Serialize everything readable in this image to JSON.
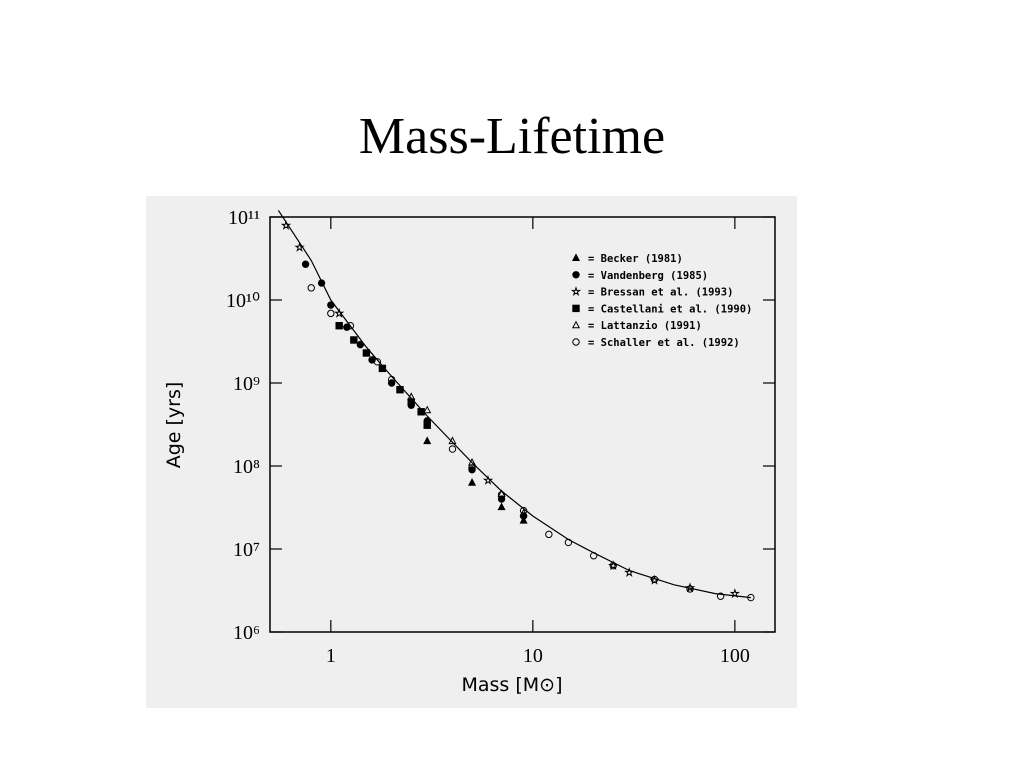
{
  "chart_data": {
    "type": "scatter",
    "title": "Mass-Lifetime",
    "xlabel": "Mass [M⊙]",
    "ylabel": "Age [yrs]",
    "xscale": "log",
    "yscale": "log",
    "legend": "upper right",
    "xlim": [
      0.5,
      158
    ],
    "ylim": [
      1000000.0,
      100000000000.0
    ],
    "xticks": [
      1,
      10,
      100
    ],
    "yticks": [
      {
        "value": 1000000.0,
        "label": "10⁶"
      },
      {
        "value": 10000000.0,
        "label": "10⁷"
      },
      {
        "value": 100000000.0,
        "label": "10⁸"
      },
      {
        "value": 1000000000.0,
        "label": "10⁹"
      },
      {
        "value": 10000000000.0,
        "label": "10¹⁰"
      },
      {
        "value": 100000000000.0,
        "label": "10¹¹"
      }
    ],
    "series": [
      {
        "name": "= Becker (1981)",
        "color": "#000000",
        "marker": "triangle-filled",
        "x": [
          3,
          5,
          7,
          9
        ],
        "values": [
          200000000.0,
          63000000.0,
          32000000.0,
          22000000.0
        ]
      },
      {
        "name": "= Vandenberg (1985)",
        "color": "#000000",
        "marker": "circle-filled",
        "x": [
          0.75,
          0.9,
          1.0,
          1.2,
          1.4,
          1.6,
          2.0,
          2.5,
          3,
          5,
          7,
          9
        ],
        "values": [
          27000000000.0,
          16000000000.0,
          8700000000.0,
          4700000000.0,
          2900000000.0,
          1900000000.0,
          1000000000.0,
          540000000.0,
          350000000.0,
          90000000.0,
          40000000.0,
          25000000.0
        ]
      },
      {
        "name": "= Bressan et al. (1993)",
        "color": "#000000",
        "marker": "star",
        "x": [
          0.6,
          0.7,
          1.1,
          6,
          25,
          30,
          40,
          60,
          100
        ],
        "values": [
          79000000000.0,
          43000000000.0,
          6900000000.0,
          67000000.0,
          6300000.0,
          5200000.0,
          4200000.0,
          3400000.0,
          2900000.0
        ]
      },
      {
        "name": "= Castellani et al. (1990)",
        "color": "#000000",
        "marker": "square-filled",
        "x": [
          1.1,
          1.3,
          1.5,
          1.8,
          2.2,
          2.5,
          2.8,
          3
        ],
        "values": [
          4900000000.0,
          3300000000.0,
          2300000000.0,
          1500000000.0,
          830000000.0,
          590000000.0,
          450000000.0,
          310000000.0
        ]
      },
      {
        "name": "= Lattanzio (1991)",
        "color": "#000000",
        "marker": "triangle-open",
        "x": [
          2.5,
          3,
          4,
          5,
          7,
          9
        ],
        "values": [
          680000000.0,
          470000000.0,
          200000000.0,
          110000000.0,
          46000000.0,
          27000000.0
        ]
      },
      {
        "name": "= Schaller et al. (1992)",
        "color": "#000000",
        "marker": "circle-open",
        "x": [
          0.8,
          1.0,
          1.25,
          1.7,
          2,
          3,
          4,
          5,
          7,
          9,
          12,
          15,
          20,
          25,
          40,
          60,
          85,
          120
        ],
        "values": [
          14000000000.0,
          6900000000.0,
          4900000000.0,
          1800000000.0,
          1100000000.0,
          330000000.0,
          160000000.0,
          95000000.0,
          45000000.0,
          29000000.0,
          15000000.0,
          12000000.0,
          8300000.0,
          6300000.0,
          4300000.0,
          3300000.0,
          2700000.0,
          2600000.0
        ]
      }
    ],
    "fit": {
      "color": "#000000",
      "x": [
        0.55,
        0.8,
        1,
        1.5,
        2,
        3,
        5,
        7,
        10,
        15,
        20,
        30,
        50,
        80,
        120
      ],
      "values": [
        120000000000.0,
        30000000000.0,
        10000000000.0,
        2700000000.0,
        1200000000.0,
        400000000.0,
        110000000.0,
        50000000.0,
        25000000.0,
        13000000.0,
        9000000.0,
        5500000.0,
        3700000.0,
        2900000.0,
        2600000.0
      ]
    }
  }
}
